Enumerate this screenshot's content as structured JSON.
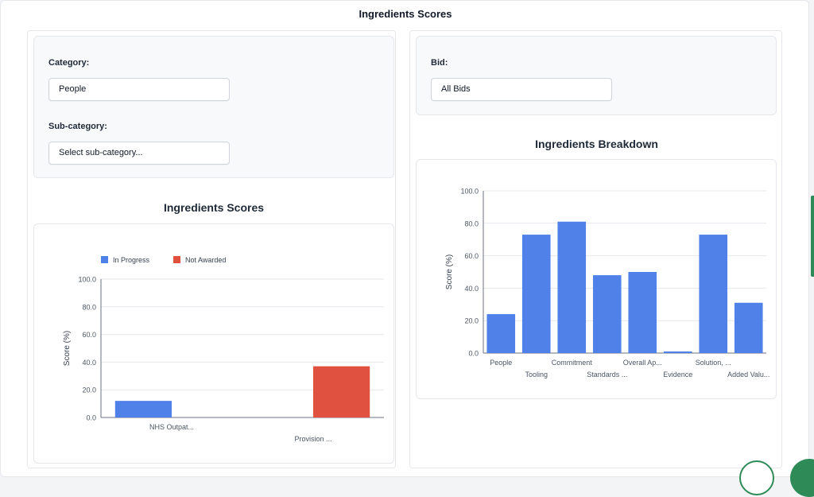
{
  "page_title": "Ingredients Scores",
  "left": {
    "category_label": "Category:",
    "category_value": "People",
    "subcategory_label": "Sub-category:",
    "subcategory_value": "Select sub-category...",
    "chart_title": "Ingredients Scores"
  },
  "right": {
    "bid_label": "Bid:",
    "bid_value": "All Bids",
    "chart_title": "Ingredients Breakdown"
  },
  "colors": {
    "blue": "#4f81e8",
    "red": "#e05140",
    "green": "#2e8b57"
  },
  "chart_data": [
    {
      "type": "bar",
      "categories": [
        "NHS Outpat...",
        "Provision ..."
      ],
      "series": [
        {
          "name": "In Progress",
          "values": [
            12,
            0
          ],
          "color": "#4f81e8"
        },
        {
          "name": "Not Awarded",
          "values": [
            0,
            37
          ],
          "color": "#e05140"
        }
      ],
      "ylabel": "Score (%)",
      "ylim": [
        0,
        100
      ],
      "yticks": [
        "0.0",
        "20.0",
        "40.0",
        "60.0",
        "80.0",
        "100.0"
      ],
      "legend": "top-left",
      "grid": true
    },
    {
      "type": "bar",
      "categories": [
        "People",
        "Tooling",
        "Commitment",
        "Standards ...",
        "Overall Ap...",
        "Evidence",
        "Solution, ...",
        "Added Valu..."
      ],
      "values": [
        24,
        73,
        81,
        48,
        50,
        1,
        73,
        31
      ],
      "ylabel": "Score (%)",
      "ylim": [
        0,
        100
      ],
      "yticks": [
        "0.0",
        "20.0",
        "40.0",
        "60.0",
        "80.0",
        "100.0"
      ],
      "grid": true
    }
  ]
}
